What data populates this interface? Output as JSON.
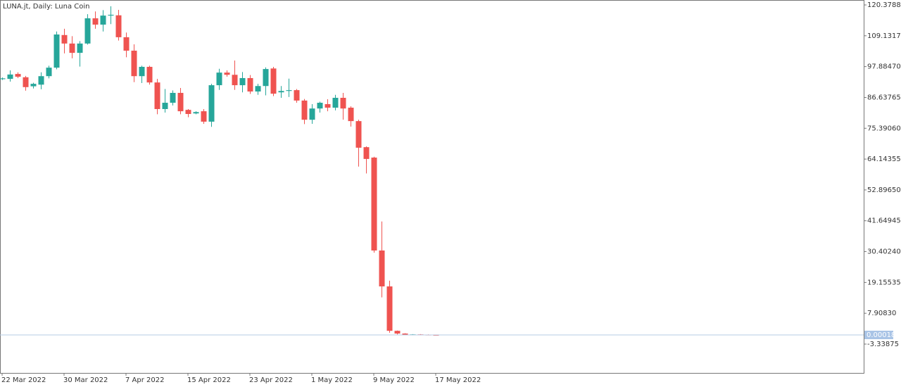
{
  "chart_data": {
    "type": "candlestick",
    "title": "LUNA.jt, Daily:  Luna Coin",
    "categories": [
      "22 Mar 2022",
      null,
      null,
      null,
      null,
      null,
      null,
      null,
      "30 Mar 2022",
      null,
      null,
      null,
      null,
      null,
      null,
      null,
      "7 Apr 2022",
      null,
      null,
      null,
      null,
      null,
      null,
      null,
      "15 Apr 2022",
      null,
      null,
      null,
      null,
      null,
      null,
      null,
      "23 Apr 2022",
      null,
      null,
      null,
      null,
      null,
      null,
      null,
      "1 May 2022",
      null,
      null,
      null,
      null,
      null,
      null,
      null,
      "9 May 2022",
      null,
      null,
      null,
      null,
      null,
      null,
      null,
      "17 May 2022"
    ],
    "open": [
      93.3,
      93.4,
      95.2,
      94.0,
      90.7,
      91.3,
      94.4,
      97.5,
      109.4,
      106.3,
      102.9,
      106.3,
      115.5,
      113.2,
      116.5,
      116.6,
      108.6,
      103.7,
      94.4,
      97.8,
      92.1,
      82.4,
      84.7,
      88.3,
      82.1,
      80.8,
      81.6,
      77.8,
      91.1,
      95.7,
      94.9,
      91.1,
      93.7,
      88.8,
      90.8,
      97.2,
      88.5,
      89.0,
      89.3,
      85.5,
      78.5,
      82.6,
      84.2,
      82.9,
      86.5,
      82.9,
      78.0,
      68.5,
      64.7,
      30.8,
      17.7,
      1.5,
      0.5,
      0.1,
      0.2,
      0.1,
      0.012
    ],
    "high": [
      93.9,
      96.5,
      95.8,
      94.5,
      92.0,
      95.8,
      98.2,
      110.7,
      111.7,
      109.0,
      107.2,
      117.0,
      118.0,
      118.5,
      119.9,
      118.6,
      110.3,
      106.0,
      98.2,
      98.2,
      93.4,
      89.7,
      89.2,
      90.1,
      82.4,
      81.6,
      82.4,
      91.6,
      97.1,
      96.5,
      100.1,
      95.9,
      94.8,
      91.6,
      97.6,
      97.8,
      90.8,
      93.5,
      89.7,
      86.1,
      84.2,
      85.1,
      86.0,
      87.6,
      88.3,
      83.4,
      78.5,
      68.8,
      65.0,
      41.4,
      19.8,
      1.6,
      0.6,
      0.3,
      0.3,
      0.2,
      0.02
    ],
    "low": [
      93.0,
      92.4,
      93.7,
      89.1,
      89.9,
      89.6,
      93.6,
      96.9,
      102.7,
      100.9,
      97.9,
      105.9,
      111.7,
      110.7,
      113.4,
      107.4,
      101.3,
      92.2,
      91.9,
      91.3,
      80.5,
      81.1,
      83.7,
      80.5,
      79.4,
      80.5,
      77.0,
      75.9,
      89.4,
      94.2,
      89.4,
      88.5,
      87.9,
      87.6,
      87.4,
      87.1,
      86.5,
      86.8,
      84.7,
      76.9,
      77.0,
      81.1,
      81.6,
      81.9,
      78.5,
      76.0,
      61.4,
      58.9,
      30.0,
      13.7,
      0.8,
      0.2,
      0.05,
      0.01,
      0.01,
      0.005,
      0.0001
    ],
    "close": [
      93.6,
      95.0,
      94.2,
      90.4,
      91.6,
      94.4,
      97.5,
      109.6,
      106.3,
      102.9,
      106.3,
      115.5,
      113.2,
      116.5,
      116.8,
      108.6,
      103.7,
      94.4,
      97.8,
      92.1,
      82.4,
      84.7,
      88.3,
      81.6,
      80.6,
      81.3,
      77.8,
      91.1,
      95.7,
      94.9,
      91.1,
      93.7,
      88.8,
      90.8,
      97.0,
      88.0,
      89.0,
      89.3,
      85.5,
      78.5,
      82.6,
      84.7,
      82.9,
      86.5,
      82.6,
      78.0,
      68.3,
      64.2,
      30.8,
      17.7,
      1.5,
      0.5,
      0.1,
      0.2,
      0.1,
      0.01,
      0.0002
    ],
    "up_color": "#26a69a",
    "down_color": "#ef5350",
    "ylim": [
      -13.86,
      122.18
    ],
    "yticks": [
      {
        "value": 120.3788,
        "label": "120.37880"
      },
      {
        "value": 109.13175,
        "label": "109.13175"
      },
      {
        "value": 97.8847,
        "label": "97.88470"
      },
      {
        "value": 86.63765,
        "label": "86.63765"
      },
      {
        "value": 75.3906,
        "label": "75.39060"
      },
      {
        "value": 64.14355,
        "label": "64.14355"
      },
      {
        "value": 52.8965,
        "label": "52.89650"
      },
      {
        "value": 41.64945,
        "label": "41.64945"
      },
      {
        "value": 30.4024,
        "label": "30.40240"
      },
      {
        "value": 19.15535,
        "label": "19.15535"
      },
      {
        "value": 7.9083,
        "label": "7.90830"
      },
      {
        "value": -3.33875,
        "label": "-3.33875"
      }
    ],
    "price_line": 0.00018
  }
}
